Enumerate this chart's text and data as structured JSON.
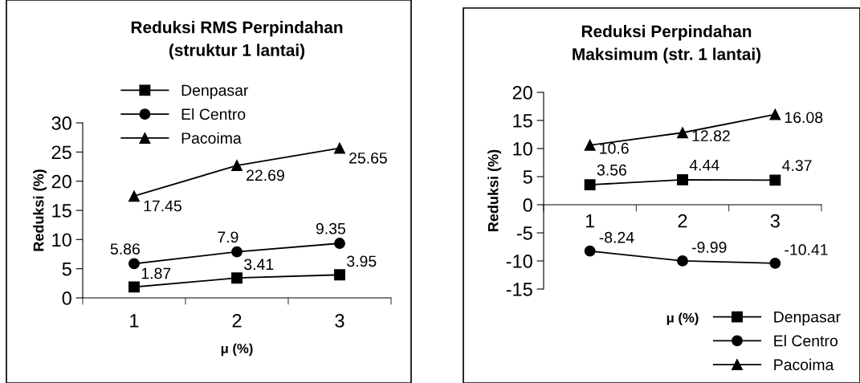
{
  "chart_data": [
    {
      "type": "line",
      "title": "Reduksi RMS Perpindahan\n(struktur 1 lantai)",
      "xlabel": "μ (%)",
      "ylabel": "Reduksi (%)",
      "categories": [
        "1",
        "2",
        "3"
      ],
      "ylim": [
        0,
        30
      ],
      "yticks": [
        0,
        5,
        10,
        15,
        20,
        25,
        30
      ],
      "grid": false,
      "legend": "top left",
      "data_labels": true,
      "series": [
        {
          "name": "Denpasar",
          "color": "#000000",
          "marker": "square",
          "values": [
            1.87,
            3.41,
            3.95
          ]
        },
        {
          "name": "El Centro",
          "color": "#000000",
          "marker": "circle",
          "values": [
            5.86,
            7.9,
            9.35
          ]
        },
        {
          "name": "Pacoima",
          "color": "#000000",
          "marker": "triangle",
          "values": [
            17.45,
            22.69,
            25.65
          ]
        }
      ]
    },
    {
      "type": "line",
      "title": "Reduksi Perpindahan\nMaksimum (str. 1 lantai)",
      "xlabel": "μ (%)",
      "ylabel": "Reduksi (%)",
      "categories": [
        "1",
        "2",
        "3"
      ],
      "ylim": [
        -15,
        20
      ],
      "yticks": [
        -15,
        -10,
        -5,
        0,
        5,
        10,
        15,
        20
      ],
      "grid": false,
      "legend": "bottom right",
      "data_labels": true,
      "series": [
        {
          "name": "Denpasar",
          "color": "#000000",
          "marker": "square",
          "values": [
            3.56,
            4.44,
            4.37
          ]
        },
        {
          "name": "El Centro",
          "color": "#000000",
          "marker": "circle",
          "values": [
            -8.24,
            -9.99,
            -10.41
          ]
        },
        {
          "name": "Pacoima",
          "color": "#000000",
          "marker": "triangle",
          "values": [
            10.6,
            12.82,
            16.08
          ]
        }
      ]
    }
  ]
}
